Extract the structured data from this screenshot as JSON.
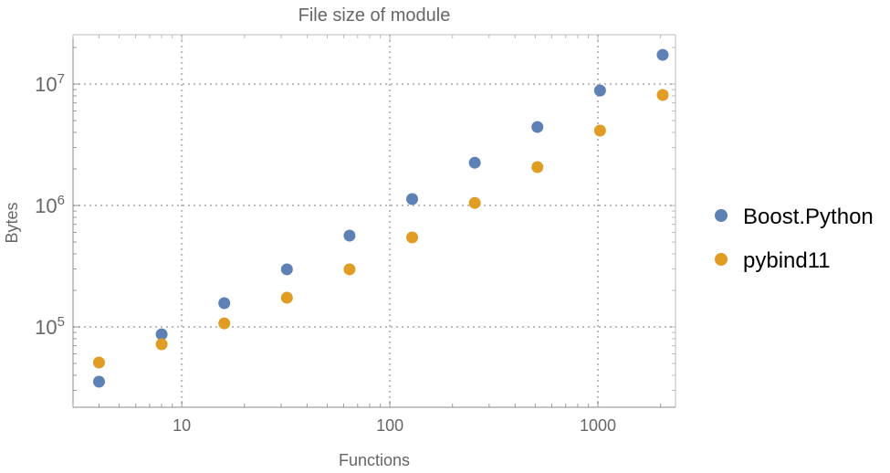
{
  "chart_data": {
    "type": "scatter",
    "title": "File size of module",
    "xlabel": "Functions",
    "ylabel": "Bytes",
    "xscale": "log",
    "yscale": "log",
    "xlim": [
      3.0,
      2360
    ],
    "ylim": [
      21800,
      25500000
    ],
    "grid": true,
    "legend_position": "right",
    "x_ticks": [
      {
        "value": 10,
        "label": "10"
      },
      {
        "value": 100,
        "label": "100"
      },
      {
        "value": 1000,
        "label": "1000"
      }
    ],
    "y_ticks": [
      {
        "value": 100000,
        "base": "10",
        "exp": "5"
      },
      {
        "value": 1000000,
        "base": "10",
        "exp": "6"
      },
      {
        "value": 10000000,
        "base": "10",
        "exp": "7"
      }
    ],
    "x": [
      4,
      8,
      16,
      32,
      64,
      128,
      256,
      512,
      1024,
      2048
    ],
    "series": [
      {
        "name": "Boost.Python",
        "color": "#5e81b5",
        "values": [
          35400,
          87000,
          157000,
          298000,
          565000,
          1130000,
          2250000,
          4430000,
          8850000,
          17400000
        ]
      },
      {
        "name": "pybind11",
        "color": "#e19c24",
        "values": [
          50900,
          72000,
          107000,
          174000,
          298000,
          546000,
          1050000,
          2070000,
          4140000,
          8130000
        ]
      }
    ]
  }
}
